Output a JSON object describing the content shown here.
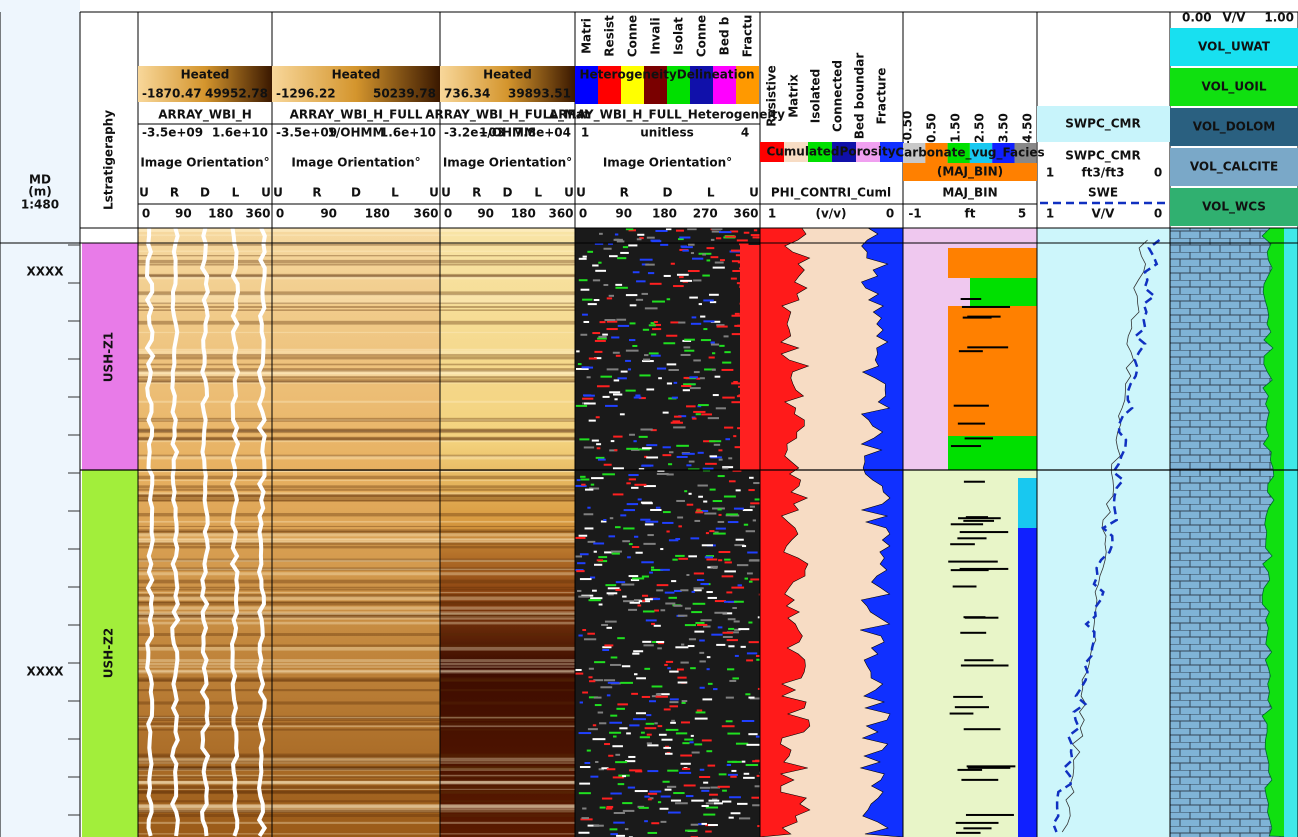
{
  "depth_track": {
    "header": [
      "MD",
      "(m)",
      "1:480"
    ],
    "labels": [
      "XXXX",
      "XXXX"
    ]
  },
  "zone_track": {
    "title": "Lstratigeraphy",
    "zones": [
      "USH-Z1",
      "USH-Z2"
    ]
  },
  "image_tracks": [
    {
      "mode": "Heated",
      "min": "-1870.47",
      "max": "49952.78",
      "curve": "ARRAY_WBI_H",
      "scale": [
        "-3.5e+09",
        "1.6e+10"
      ],
      "orientation_title": "Image Orientation°",
      "orientation": [
        "U",
        "R",
        "D",
        "L",
        "U"
      ],
      "ticks": [
        "0",
        "90",
        "180",
        "360"
      ]
    },
    {
      "mode": "Heated",
      "min": "-1296.22",
      "max": "50239.78",
      "curve": "ARRAY_WBI_H_FULL",
      "scale": [
        "-3.5e+09",
        "1/OHMM",
        "1.6e+10"
      ],
      "orientation_title": "Image Orientation°",
      "orientation": [
        "U",
        "R",
        "D",
        "L",
        "U"
      ],
      "ticks": [
        "0",
        "90",
        "180",
        "360"
      ]
    },
    {
      "mode": "Heated",
      "min": "736.34",
      "max": "39893.51",
      "curve": "ARRAY_WBI_H_FULL_Mat",
      "scale": [
        "-3.2e+03",
        "1/OHMM",
        "7.8e+04"
      ],
      "orientation_title": "Image Orientation°",
      "orientation": [
        "U",
        "R",
        "D",
        "L",
        "U"
      ],
      "ticks": [
        "0",
        "90",
        "180",
        "360"
      ]
    }
  ],
  "heterogeneity_track": {
    "legend": [
      "Matri",
      "Resist",
      "Conne",
      "Invali",
      "Isolat",
      "Conne",
      "Bed b",
      "Fractu"
    ],
    "title": "HeterogeneityDelineation",
    "curve": "ARRAY_WBI_H_FULL_Heterogeneity",
    "scale": [
      "1",
      "unitless",
      "4"
    ],
    "orientation_title": "Image Orientation°",
    "orientation": [
      "U",
      "R",
      "D",
      "L",
      "U"
    ],
    "ticks": [
      "0",
      "90",
      "180",
      "270",
      "360"
    ]
  },
  "porosity_track": {
    "legend": [
      "Resistive",
      "Matrix",
      "Isolated",
      "Connected",
      "Bed boundar",
      "Fracture"
    ],
    "title": "CumulatedPorosity",
    "curve": "PHI_CONTRI_Cuml",
    "scale": [
      "1",
      "(v/v)",
      "0"
    ]
  },
  "facies_track": {
    "ticks": [
      "-0.50",
      "0.50",
      "1.50",
      "2.50",
      "3.50",
      "4.50"
    ],
    "title": "Carbonate_vug_Facies",
    "subtitle": "(MAJ_BIN)",
    "curve": "MAJ_BIN",
    "scale": [
      "-1",
      "ft",
      "5"
    ]
  },
  "saturation_track": {
    "fill_label": "SWPC_CMR",
    "curve": "SWPC_CMR",
    "scale": [
      "1",
      "ft3/ft3",
      "0"
    ],
    "curve2": "SWE",
    "scale2": [
      "1",
      "V/V",
      "0"
    ]
  },
  "volume_track": {
    "scale": [
      "0.00",
      "V/V",
      "1.00"
    ],
    "components": [
      "VOL_UWAT",
      "VOL_UOIL",
      "VOL_DOLOM",
      "VOL_CALCITE",
      "VOL_WCS"
    ]
  }
}
